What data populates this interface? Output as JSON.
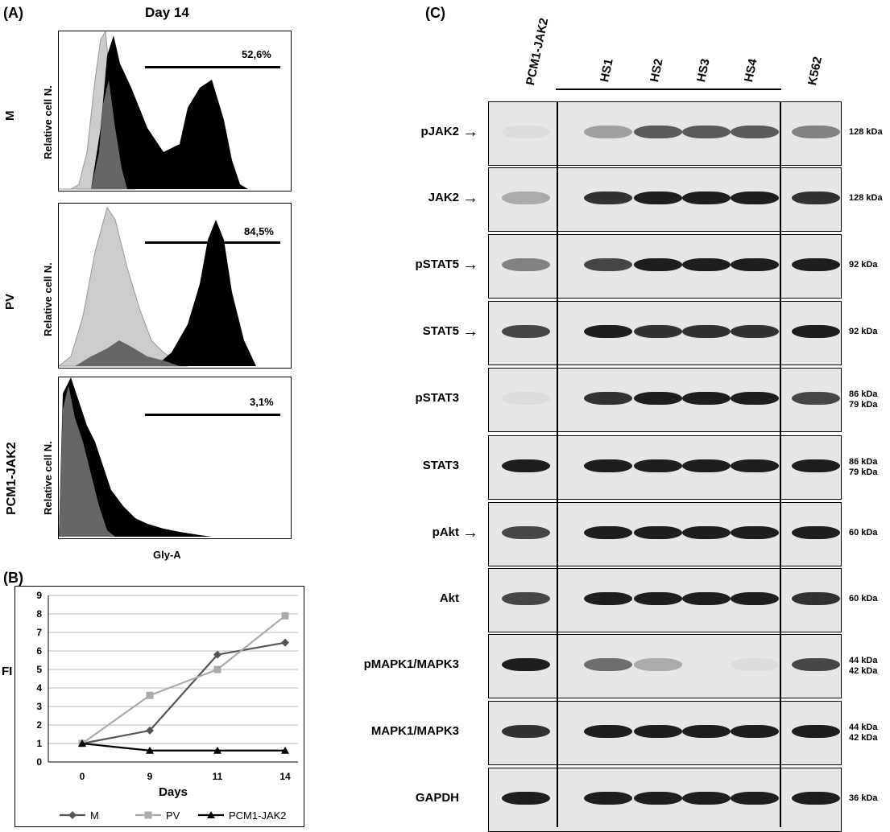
{
  "panelA": {
    "letter": "(A)",
    "title": "Day 14",
    "ylabel": "Relative cell N.",
    "xlabel": "Gly-A",
    "histograms": [
      {
        "row": "M",
        "percent": "52,6%"
      },
      {
        "row": "PV",
        "percent": "84,5%"
      },
      {
        "row": "PCM1-JAK2",
        "percent": "3,1%"
      }
    ]
  },
  "panelB": {
    "letter": "(B)",
    "legend": [
      "M",
      "PV",
      "PCM1-JAK2"
    ]
  },
  "chart_data": {
    "type": "line",
    "x": [
      0,
      9,
      11,
      14
    ],
    "xlabel": "Days",
    "ylabel": "FI",
    "ylim": [
      0,
      9
    ],
    "yticks": [
      "0",
      "1",
      "2",
      "3",
      "4",
      "5",
      "6",
      "7",
      "8",
      "9"
    ],
    "xticks": [
      "0",
      "9",
      "11",
      "14"
    ],
    "grid": true,
    "legend_position": "bottom",
    "series": [
      {
        "name": "M",
        "values": [
          1,
          1.7,
          5.8,
          6.45
        ],
        "color": "#555555",
        "marker": "diamond"
      },
      {
        "name": "PV",
        "values": [
          1,
          3.6,
          5.0,
          7.9
        ],
        "color": "#aaaaaa",
        "marker": "square"
      },
      {
        "name": "PCM1-JAK2",
        "values": [
          1,
          0.62,
          0.62,
          0.62
        ],
        "color": "#000000",
        "marker": "triangle"
      }
    ]
  },
  "panelC": {
    "letter": "(C)",
    "lanes": [
      "PCM1-JAK2",
      "HS1",
      "HS2",
      "HS3",
      "HS4",
      "K562"
    ],
    "blots": [
      {
        "label": "pJAK2",
        "arrow": "→",
        "kda": [
          "128 kDa"
        ]
      },
      {
        "label": "JAK2",
        "arrow": "→",
        "kda": [
          "128 kDa"
        ]
      },
      {
        "label": "pSTAT5",
        "arrow": "→",
        "kda": [
          "92 kDa"
        ]
      },
      {
        "label": "STAT5",
        "arrow": "→",
        "kda": [
          "92 kDa"
        ]
      },
      {
        "label": "pSTAT3",
        "arrow": "",
        "kda": [
          "86 kDa",
          "79 kDa"
        ]
      },
      {
        "label": "STAT3",
        "arrow": "",
        "kda": [
          "86 kDa",
          "79 kDa"
        ]
      },
      {
        "label": "pAkt",
        "arrow": "→",
        "kda": [
          "60 kDa"
        ]
      },
      {
        "label": "Akt",
        "arrow": "",
        "kda": [
          "60 kDa"
        ]
      },
      {
        "label": "pMAPK1/MAPK3",
        "arrow": "",
        "kda": [
          "44 kDa",
          "42 kDa"
        ]
      },
      {
        "label": "MAPK1/MAPK3",
        "arrow": "",
        "kda": [
          "44 kDa",
          "42 kDa"
        ]
      },
      {
        "label": "GAPDH",
        "arrow": "",
        "kda": [
          "36 kDa"
        ]
      }
    ]
  }
}
